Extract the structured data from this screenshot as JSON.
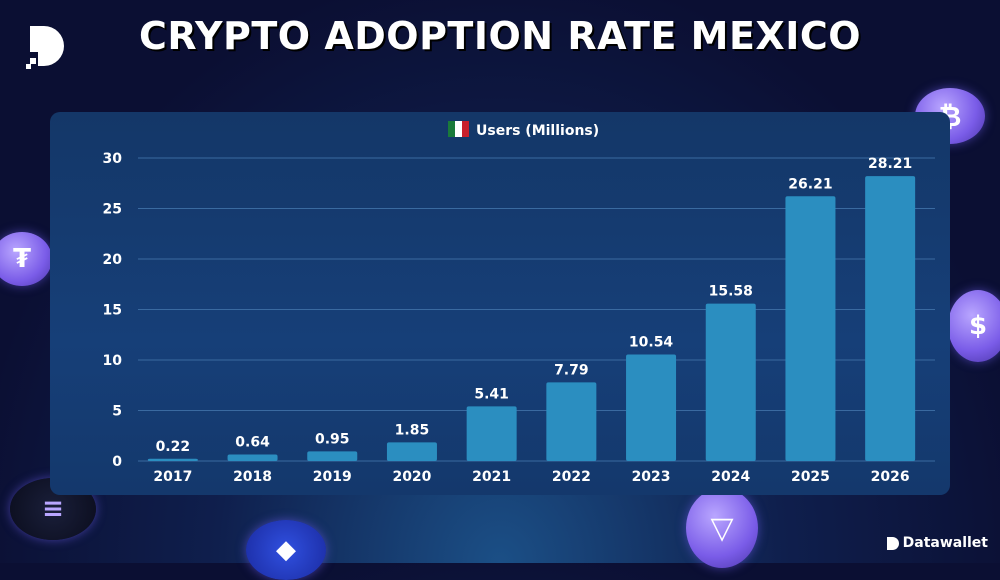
{
  "header": {
    "title": "CRYPTO ADOPTION RATE MEXICO"
  },
  "brand": {
    "name": "Datawallet"
  },
  "decorations": [
    "bitcoin-coin-icon",
    "tether-coin-icon",
    "usdc-coin-icon",
    "solana-coin-icon",
    "ethereum-coin-icon",
    "tron-coin-icon"
  ],
  "colors": {
    "bar": "#2b8ec0",
    "background": "#0b0f33",
    "panel": "#153a70"
  },
  "chart_data": {
    "type": "bar",
    "title": "",
    "legend": [
      {
        "name": "Users (Millions)",
        "icon": "mexico-flag-icon"
      }
    ],
    "legend_placement": "top-center",
    "categories": [
      "2017",
      "2018",
      "2019",
      "2020",
      "2021",
      "2022",
      "2023",
      "2024",
      "2025",
      "2026"
    ],
    "values": [
      0.22,
      0.64,
      0.95,
      1.85,
      5.41,
      7.79,
      10.54,
      15.58,
      26.21,
      28.21
    ],
    "data_labels": [
      "0.22",
      "0.64",
      "0.95",
      "1.85",
      "5.41",
      "7.79",
      "10.54",
      "15.58",
      "26.21",
      "28.21"
    ],
    "yticks": [
      "0",
      "5",
      "10",
      "15",
      "20",
      "25",
      "30"
    ],
    "ylim": [
      0,
      30
    ],
    "grid": true,
    "xlabel": "",
    "ylabel": ""
  }
}
